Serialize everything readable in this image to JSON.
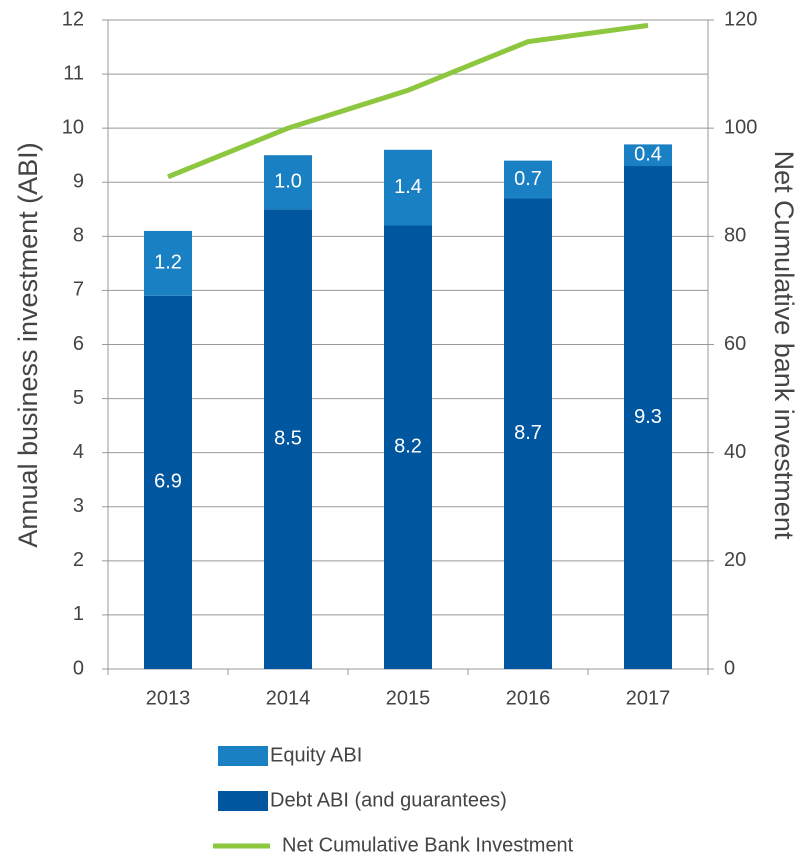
{
  "chart_data": {
    "type": "bar",
    "categories": [
      "2013",
      "2014",
      "2015",
      "2016",
      "2017"
    ],
    "series": [
      {
        "name": "Debt ABI (and guarantees)",
        "color": "#00569f",
        "values": [
          6.9,
          8.5,
          8.2,
          8.7,
          9.3
        ],
        "value_labels": [
          "6.9",
          "8.5",
          "8.2",
          "8.7",
          "9.3"
        ]
      },
      {
        "name": "Equity ABI",
        "color": "#1a80c4",
        "values": [
          1.2,
          1.0,
          1.4,
          0.7,
          0.4
        ],
        "value_labels": [
          "1.2",
          "1.0",
          "1.4",
          "0.7",
          "0.4"
        ]
      },
      {
        "name": "Net Cumulative Bank Investment",
        "type": "line",
        "axis": "y2",
        "color": "#8dc63f",
        "values": [
          91,
          100,
          107,
          116,
          119
        ]
      }
    ],
    "stacked": true,
    "ylabel": "Annual business investment (ABI)",
    "y2label": "Net Cumulative bank investment",
    "ylim": [
      0,
      12
    ],
    "yticks": [
      0,
      1,
      2,
      3,
      4,
      5,
      6,
      7,
      8,
      9,
      10,
      11,
      12
    ],
    "y2lim": [
      0,
      120
    ],
    "y2ticks": [
      0,
      20,
      40,
      60,
      80,
      100,
      120
    ],
    "grid": true,
    "legend": "bottom"
  }
}
